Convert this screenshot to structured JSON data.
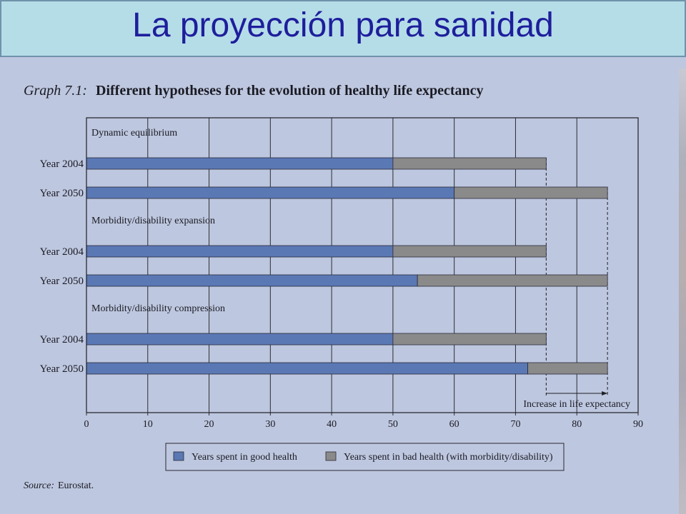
{
  "slide": {
    "title": "La proyección para sanidad"
  },
  "chart_data": {
    "type": "bar",
    "orientation": "horizontal",
    "stacked": true,
    "title_prefix": "Graph 7.1:",
    "title": "Different hypotheses for the evolution of healthy life expectancy",
    "xlim": [
      0,
      90
    ],
    "xticks": [
      0,
      10,
      20,
      30,
      40,
      50,
      60,
      70,
      80,
      90
    ],
    "grid": true,
    "legend": "bottom",
    "series": [
      {
        "name": "Years spent in good health",
        "color": "#5a78b4"
      },
      {
        "name": "Years spent in bad health (with morbidity/disability)",
        "color": "#8a8a8a"
      }
    ],
    "groups": [
      {
        "label": "Dynamic equilibrium",
        "bars": [
          {
            "category": "Year 2004",
            "values": [
              50,
              25
            ]
          },
          {
            "category": "Year 2050",
            "values": [
              60,
              25
            ]
          }
        ]
      },
      {
        "label": "Morbidity/disability expansion",
        "bars": [
          {
            "category": "Year 2004",
            "values": [
              50,
              25
            ]
          },
          {
            "category": "Year 2050",
            "values": [
              54,
              31
            ]
          }
        ]
      },
      {
        "label": "Morbidity/disability compression",
        "bars": [
          {
            "category": "Year 2004",
            "values": [
              50,
              25
            ]
          },
          {
            "category": "Year 2050",
            "values": [
              72,
              13
            ]
          }
        ]
      }
    ],
    "annotation": {
      "text": "Increase in life expectancy",
      "from": 75,
      "to": 85
    },
    "source_prefix": "Source:",
    "source": "Eurostat."
  }
}
